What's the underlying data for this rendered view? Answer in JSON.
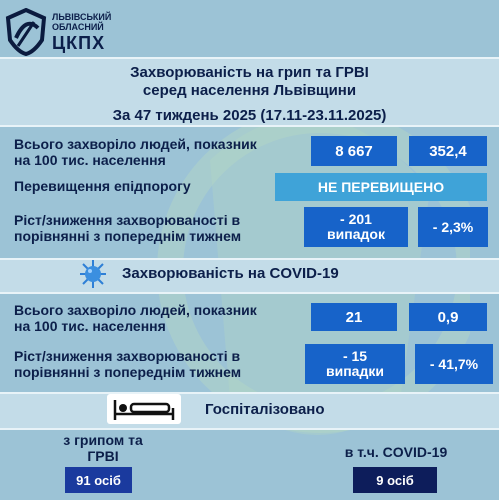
{
  "logo": {
    "line1": "ЛЬВІВСЬКИЙ",
    "line2": "ОБЛАСНИЙ",
    "name": "ЦКПХ"
  },
  "title": {
    "line1": "Захворюваність на грип та ГРВІ",
    "line2": "серед населення Львівщини",
    "week": "За 47 тиждень 2025 (17.11-23.11.2025)"
  },
  "flu": {
    "total_label_1": "Всього захворіло людей, показник",
    "total_label_2": "на 100 тис. населення",
    "total_cases": "8 667",
    "rate": "352,4",
    "threshold_label": "Перевищення епідпорогу",
    "threshold_value": "НЕ ПЕРЕВИЩЕНО",
    "change_label_1": "Ріст/зниження захворюваності  в",
    "change_label_2": "порівнянні з попереднім тижнем",
    "change_cases_1": "- 201",
    "change_cases_2": "випадок",
    "change_percent": "- 2,3%"
  },
  "covid": {
    "heading": "Захворюваність на COVID-19",
    "total_label_1": "Всього захворіло людей, показник",
    "total_label_2": "на 100 тис. населення",
    "total_cases": "21",
    "rate": "0,9",
    "change_label_1": "Ріст/зниження захворюваності  в",
    "change_label_2": "порівнянні з попереднім тижнем",
    "change_cases_1": "- 15",
    "change_cases_2": "випадки",
    "change_percent": "- 41,7%"
  },
  "hospital": {
    "heading": "Госпіталізовано",
    "flu_label_1": "з грипом та",
    "flu_label_2": "ГРВІ",
    "flu_value": "91 осіб",
    "covid_label": "в т.ч. COVID-19",
    "covid_value": "9 осіб"
  },
  "colors": {
    "background": "#9cc3d6",
    "band": "#c3dce8",
    "box": "#1763c9",
    "status": "#3fa3d8",
    "navy": "#0d1d5b",
    "text": "#0c1f4a"
  }
}
